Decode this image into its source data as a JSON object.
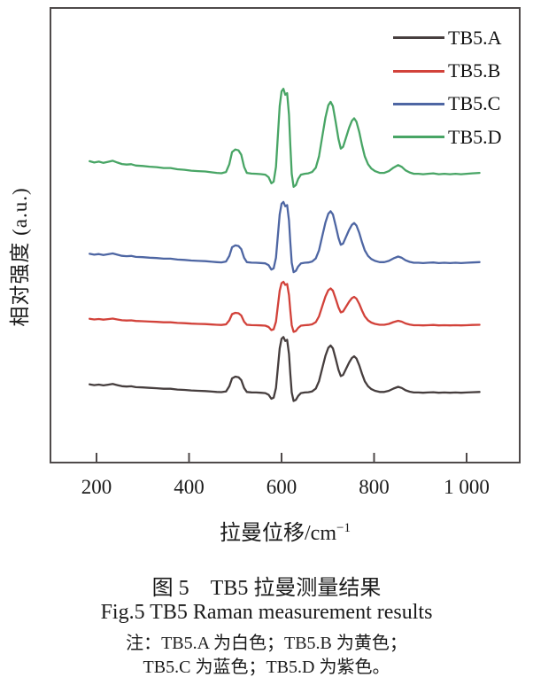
{
  "figure": {
    "y_axis_label": "相对强度 (a.u.)",
    "x_axis_label_base": "拉曼位移/cm",
    "x_axis_label_sup": "−1",
    "legend": [
      {
        "label": "TB5.A",
        "color": "#463e3e"
      },
      {
        "label": "TB5.B",
        "color": "#d2423a"
      },
      {
        "label": "TB5.C",
        "color": "#4e66a3"
      },
      {
        "label": "TB5.D",
        "color": "#48a565"
      }
    ],
    "frame_color": "#4f4a4a"
  },
  "caption": {
    "line_zh": "图 5　TB5 拉曼测量结果",
    "line_en": "Fig.5 TB5 Raman measurement results",
    "note1": "注：TB5.A 为白色；TB5.B 为黄色；",
    "note2": "TB5.C 为蓝色；TB5.D 为紫色。"
  },
  "chart_data": {
    "type": "line",
    "title": "",
    "xlabel": "拉曼位移/cm⁻¹",
    "ylabel": "相对强度 (a.u.)",
    "legend_position": "top-right-inside",
    "grid": false,
    "x_axis": {
      "tick_values": [
        200,
        400,
        600,
        800,
        1000
      ],
      "tick_labels": [
        "200",
        "400",
        "600",
        "800",
        "1 000"
      ],
      "range_cm1": [
        97,
        1118
      ]
    },
    "y_axis": {
      "label": "相对强度 (a.u.)",
      "units": "arbitrary units, no ticks; four spectra stacked with vertical offsets"
    },
    "peaks_cm1": [
      500,
      604,
      706,
      757,
      852
    ],
    "note": "All four Raman spectra share the same band profile; 'intensity' is the normalized common profile (0 = local baseline, 1 = strongest band at ~604 cm⁻¹, negative = dips beside the strong band). Each series = baseline_frac + amplitude_frac × intensity, in fractions of full plot height (stacked display).",
    "profile": {
      "x": [
        185,
        195,
        205,
        215,
        225,
        235,
        245,
        255,
        265,
        275,
        285,
        300,
        315,
        330,
        345,
        360,
        375,
        390,
        405,
        420,
        435,
        450,
        460,
        470,
        480,
        487,
        493,
        500,
        507,
        513,
        519,
        525,
        535,
        545,
        555,
        565,
        572,
        578,
        583,
        588,
        592,
        596,
        600,
        604,
        608,
        612,
        616,
        619,
        622,
        626,
        631,
        636,
        642,
        650,
        658,
        666,
        674,
        681,
        688,
        695,
        701,
        706,
        711,
        717,
        723,
        728,
        733,
        739,
        746,
        752,
        757,
        762,
        768,
        774,
        780,
        787,
        794,
        802,
        812,
        822,
        832,
        842,
        852,
        860,
        868,
        877,
        886,
        896,
        906,
        916,
        928,
        940,
        952,
        964,
        976,
        988,
        1000,
        1012,
        1028
      ],
      "intensity": [
        0.165,
        0.15,
        0.16,
        0.145,
        0.158,
        0.17,
        0.15,
        0.132,
        0.126,
        0.13,
        0.115,
        0.11,
        0.102,
        0.096,
        0.086,
        0.086,
        0.072,
        0.066,
        0.056,
        0.05,
        0.046,
        0.036,
        0.03,
        0.026,
        0.04,
        0.13,
        0.27,
        0.3,
        0.29,
        0.24,
        0.1,
        0.03,
        0.022,
        0.02,
        0.016,
        0.01,
        -0.02,
        -0.09,
        -0.07,
        0.1,
        0.45,
        0.8,
        0.97,
        1.0,
        0.93,
        0.95,
        0.7,
        0.35,
        0.02,
        -0.13,
        -0.11,
        -0.04,
        0.01,
        0.02,
        0.025,
        0.04,
        0.09,
        0.22,
        0.45,
        0.67,
        0.81,
        0.85,
        0.8,
        0.62,
        0.42,
        0.31,
        0.33,
        0.43,
        0.55,
        0.63,
        0.66,
        0.62,
        0.5,
        0.35,
        0.22,
        0.13,
        0.08,
        0.05,
        0.03,
        0.03,
        0.05,
        0.09,
        0.12,
        0.1,
        0.06,
        0.035,
        0.02,
        0.02,
        0.015,
        0.02,
        0.025,
        0.015,
        0.02,
        0.015,
        0.02,
        0.015,
        0.02,
        0.025,
        0.03
      ]
    },
    "series": [
      {
        "name": "TB5.A",
        "color": "#463e3e",
        "baseline_frac": 0.153,
        "amplitude_frac": 0.124
      },
      {
        "name": "TB5.B",
        "color": "#d2423a",
        "baseline_frac": 0.301,
        "amplitude_frac": 0.097
      },
      {
        "name": "TB5.C",
        "color": "#4e66a3",
        "baseline_frac": 0.437,
        "amplitude_frac": 0.136
      },
      {
        "name": "TB5.D",
        "color": "#48a565",
        "baseline_frac": 0.631,
        "amplitude_frac": 0.19
      }
    ]
  }
}
